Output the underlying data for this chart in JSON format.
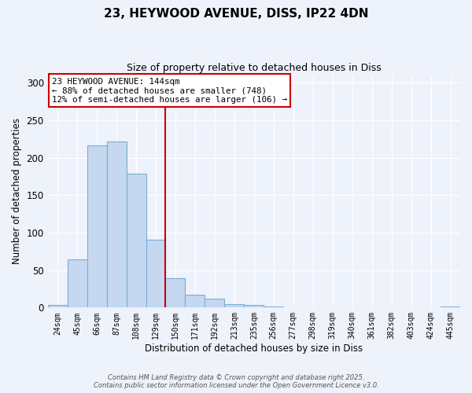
{
  "title_line1": "23, HEYWOOD AVENUE, DISS, IP22 4DN",
  "title_line2": "Size of property relative to detached houses in Diss",
  "xlabel": "Distribution of detached houses by size in Diss",
  "ylabel": "Number of detached properties",
  "bar_labels": [
    "24sqm",
    "45sqm",
    "66sqm",
    "87sqm",
    "108sqm",
    "129sqm",
    "150sqm",
    "171sqm",
    "192sqm",
    "213sqm",
    "235sqm",
    "256sqm",
    "277sqm",
    "298sqm",
    "319sqm",
    "340sqm",
    "361sqm",
    "382sqm",
    "403sqm",
    "424sqm",
    "445sqm"
  ],
  "bar_values": [
    3,
    64,
    216,
    221,
    178,
    91,
    39,
    17,
    12,
    5,
    3,
    1,
    0,
    0,
    0,
    0,
    0,
    0,
    0,
    0,
    1
  ],
  "bar_color": "#c5d8f0",
  "bar_edge_color": "#7aadd4",
  "vline_color": "#cc0000",
  "ylim": [
    0,
    310
  ],
  "yticks": [
    0,
    50,
    100,
    150,
    200,
    250,
    300
  ],
  "annotation_title": "23 HEYWOOD AVENUE: 144sqm",
  "annotation_line2": "← 88% of detached houses are smaller (748)",
  "annotation_line3": "12% of semi-detached houses are larger (106) →",
  "annotation_box_color": "#ffffff",
  "annotation_box_edge": "#cc0000",
  "footer_line1": "Contains HM Land Registry data © Crown copyright and database right 2025.",
  "footer_line2": "Contains public sector information licensed under the Open Government Licence v3.0.",
  "background_color": "#eef2fb"
}
